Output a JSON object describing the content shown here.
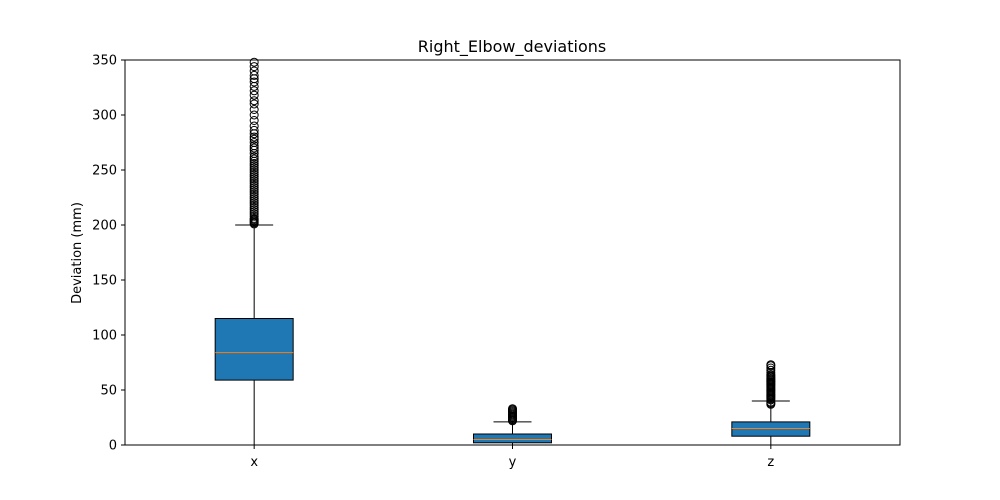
{
  "chart_data": {
    "type": "box",
    "title": "Right_Elbow_deviations",
    "xlabel": "",
    "ylabel": "Deviation (mm)",
    "ylim": [
      0,
      350
    ],
    "yticks": [
      0,
      50,
      100,
      150,
      200,
      250,
      300,
      350
    ],
    "categories": [
      "x",
      "y",
      "z"
    ],
    "boxes": [
      {
        "category": "x",
        "whisker_low": 0,
        "q1": 59,
        "median": 84,
        "q3": 115,
        "whisker_high": 200,
        "outliers": [
          201,
          202,
          203,
          204,
          205,
          206,
          208,
          210,
          212,
          214,
          216,
          218,
          220,
          222,
          224,
          226,
          228,
          230,
          232,
          234,
          236,
          238,
          240,
          242,
          244,
          246,
          248,
          250,
          252,
          254,
          256,
          258,
          260,
          262,
          265,
          268,
          270,
          272,
          275,
          278,
          280,
          283,
          286,
          290,
          295,
          300,
          305,
          310,
          313,
          318,
          322,
          326,
          330,
          333,
          336,
          340,
          344,
          348
        ]
      },
      {
        "category": "y",
        "whisker_low": 0,
        "q1": 2,
        "median": 5,
        "q3": 10,
        "whisker_high": 21,
        "outliers": [
          22,
          23,
          24,
          25,
          26,
          27,
          28,
          29,
          30,
          31,
          32,
          33
        ]
      },
      {
        "category": "z",
        "whisker_low": 0,
        "q1": 8,
        "median": 15,
        "q3": 21,
        "whisker_high": 40,
        "outliers": [
          37,
          38,
          39,
          41,
          42,
          43,
          44,
          45,
          46,
          47,
          48,
          49,
          50,
          51,
          52,
          53,
          54,
          55,
          56,
          57,
          58,
          59,
          60,
          61,
          62,
          63,
          64,
          66,
          68,
          70,
          72,
          73
        ]
      }
    ],
    "colors": {
      "box_fill": "#1f77b4",
      "median": "#ff7f0e",
      "line": "#000000",
      "background": "#ffffff"
    },
    "grid": false,
    "legend": "none"
  }
}
